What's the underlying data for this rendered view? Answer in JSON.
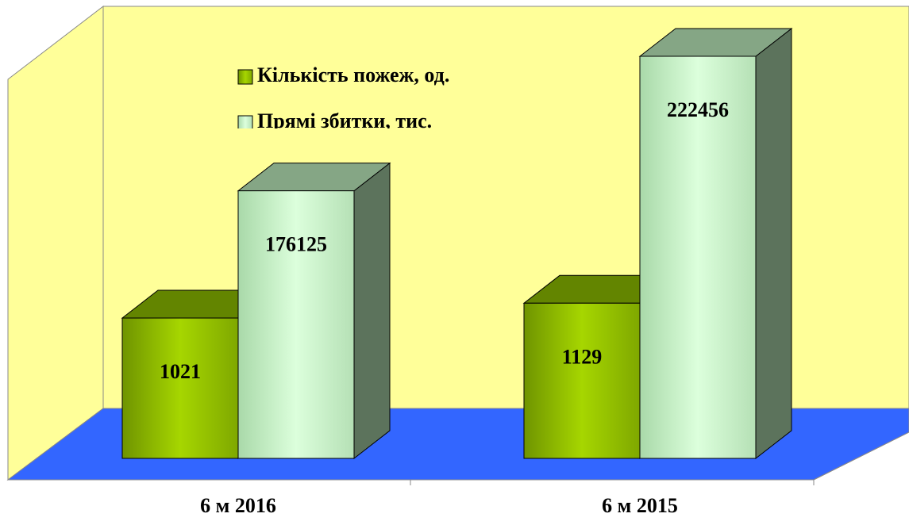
{
  "chart_data": {
    "type": "bar3d",
    "categories": [
      "6 м 2016",
      "6 м 2015"
    ],
    "series": [
      {
        "name": "Кількість пожеж, од.",
        "color": "#99cc00",
        "values": [
          1021,
          1129
        ]
      },
      {
        "name": "Прямі збитки, тис.",
        "color": "#ccffcc",
        "values": [
          176125,
          222456
        ],
        "axis": "y2"
      }
    ],
    "ylim": [
      0,
      3000
    ],
    "y2lim": [
      84000,
      226000
    ],
    "wall_color": "#ffff99",
    "floor_color": "#3366ff"
  }
}
